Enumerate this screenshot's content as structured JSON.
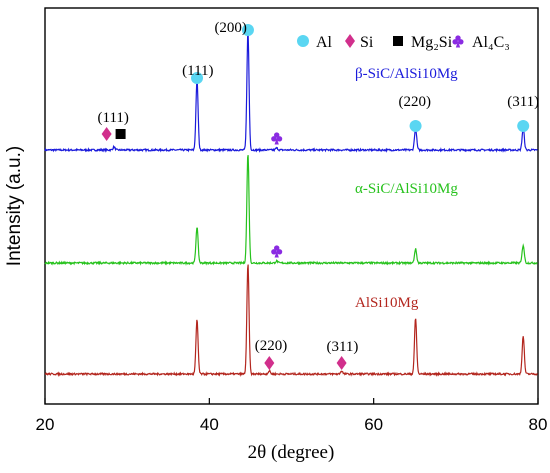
{
  "chart_data": {
    "type": "line",
    "xlabel": "2θ (degree)",
    "ylabel": "Intensity (a.u.)",
    "xlim": [
      20,
      80
    ],
    "xticks": [
      20,
      40,
      60,
      80
    ],
    "grid": false,
    "legend_position": "top-right",
    "legend": [
      {
        "symbol": "circle",
        "color": "#5ad6f2",
        "label": "Al"
      },
      {
        "symbol": "diamond",
        "color": "#d12f8c",
        "label": "Si"
      },
      {
        "symbol": "square",
        "color": "#000000",
        "label": "Mg₂Si"
      },
      {
        "symbol": "club",
        "color": "#8a2be2",
        "label": "Al₄C₃"
      }
    ],
    "series": [
      {
        "name": "β-SiC/AlSi10Mg",
        "color": "#1a1adb",
        "peaks": [
          {
            "x": 28.4,
            "h": 3
          },
          {
            "x": 38.5,
            "h": 70
          },
          {
            "x": 44.7,
            "h": 118
          },
          {
            "x": 48.2,
            "h": 2
          },
          {
            "x": 65.1,
            "h": 22
          },
          {
            "x": 78.2,
            "h": 22
          }
        ]
      },
      {
        "name": "α-SiC/AlSi10Mg",
        "color": "#27c21d",
        "peaks": [
          {
            "x": 38.5,
            "h": 36
          },
          {
            "x": 44.7,
            "h": 110
          },
          {
            "x": 48.2,
            "h": 2
          },
          {
            "x": 65.1,
            "h": 14
          },
          {
            "x": 78.2,
            "h": 18
          }
        ]
      },
      {
        "name": "AlSi10Mg",
        "color": "#b3261e",
        "peaks": [
          {
            "x": 38.5,
            "h": 54
          },
          {
            "x": 44.7,
            "h": 110
          },
          {
            "x": 47.3,
            "h": 3
          },
          {
            "x": 56.1,
            "h": 3
          },
          {
            "x": 65.1,
            "h": 56
          },
          {
            "x": 78.2,
            "h": 38
          }
        ]
      }
    ],
    "annotations": [
      {
        "text": "(111)",
        "x": 38.6,
        "series": 0,
        "kind": "hkl"
      },
      {
        "text": "(200)",
        "x": 42.6,
        "series": 0,
        "kind": "hkl"
      },
      {
        "text": "(220)",
        "x": 65.0,
        "series": 0,
        "kind": "hkl"
      },
      {
        "text": "(311)",
        "x": 78.2,
        "series": 0,
        "kind": "hkl"
      },
      {
        "text": "(111)",
        "x": 28.3,
        "series": 0,
        "kind": "hkl"
      },
      {
        "text": "(220)",
        "x": 47.5,
        "series": 2,
        "kind": "hkl"
      },
      {
        "text": "(311)",
        "x": 56.2,
        "series": 2,
        "kind": "hkl"
      }
    ],
    "markers": [
      {
        "x": 38.5,
        "series": 0,
        "symbol": "circle",
        "color": "#5ad6f2"
      },
      {
        "x": 44.7,
        "series": 0,
        "symbol": "circle",
        "color": "#5ad6f2"
      },
      {
        "x": 65.1,
        "series": 0,
        "symbol": "circle",
        "color": "#5ad6f2"
      },
      {
        "x": 78.2,
        "series": 0,
        "symbol": "circle",
        "color": "#5ad6f2"
      },
      {
        "x": 27.5,
        "series": 0,
        "symbol": "diamond",
        "color": "#d12f8c"
      },
      {
        "x": 29.2,
        "series": 0,
        "symbol": "square",
        "color": "#000000"
      },
      {
        "x": 48.2,
        "series": 0,
        "symbol": "club",
        "color": "#8a2be2"
      },
      {
        "x": 48.2,
        "series": 1,
        "symbol": "club",
        "color": "#8a2be2"
      },
      {
        "x": 47.3,
        "series": 2,
        "symbol": "diamond",
        "color": "#d12f8c"
      },
      {
        "x": 56.1,
        "series": 2,
        "symbol": "diamond",
        "color": "#d12f8c"
      }
    ]
  }
}
